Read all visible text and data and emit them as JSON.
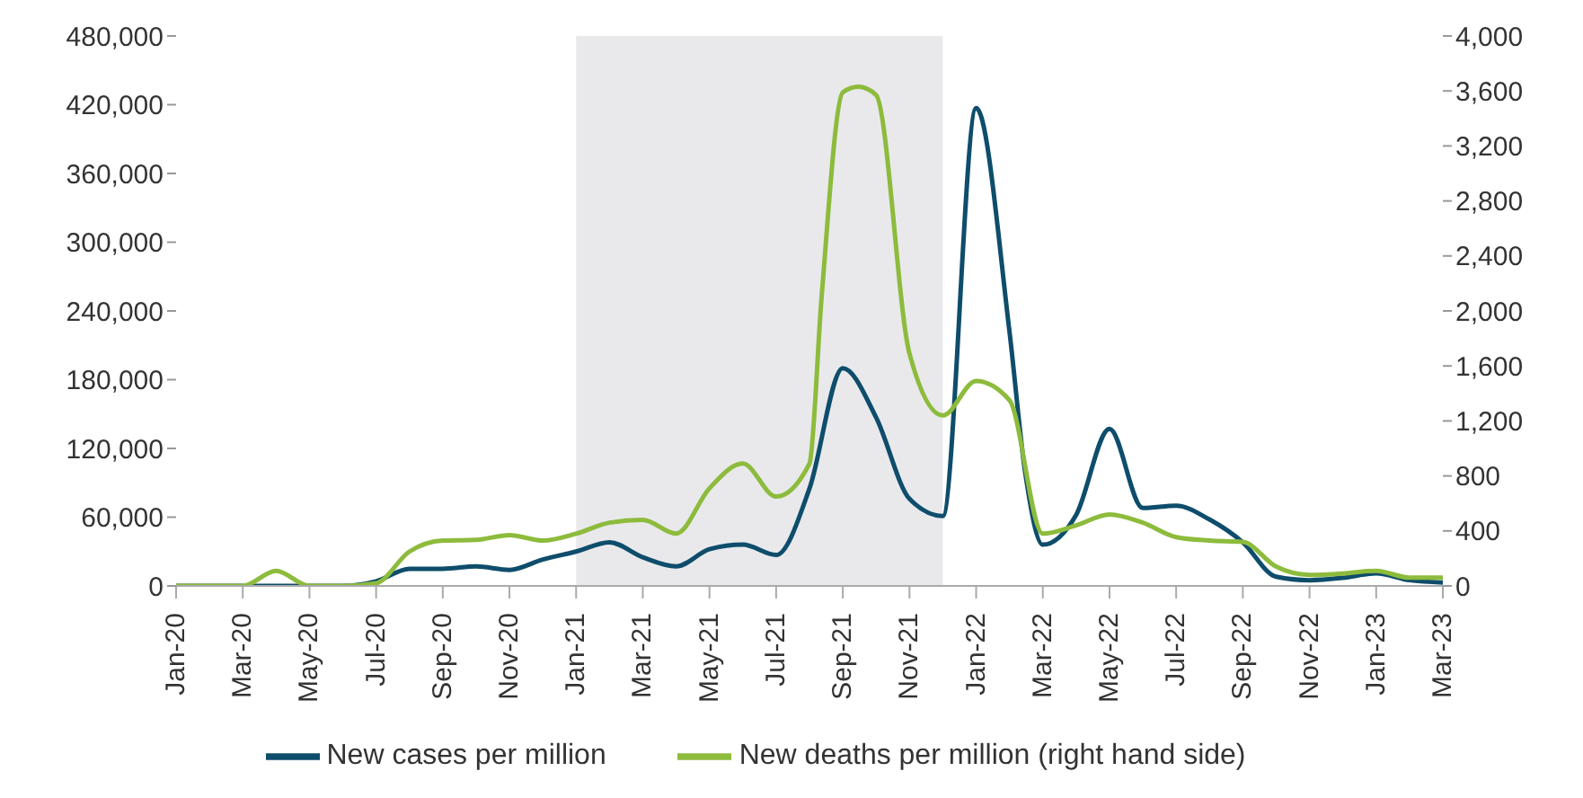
{
  "chart_data": {
    "type": "line",
    "xlim": [
      "2020-01",
      "2023-03"
    ],
    "xticks": [
      {
        "value": "2020-01",
        "label": "Jan-20"
      },
      {
        "value": "2020-03",
        "label": "Mar-20"
      },
      {
        "value": "2020-05",
        "label": "May-20"
      },
      {
        "value": "2020-07",
        "label": "Jul-20"
      },
      {
        "value": "2020-09",
        "label": "Sep-20"
      },
      {
        "value": "2020-11",
        "label": "Nov-20"
      },
      {
        "value": "2021-01",
        "label": "Jan-21"
      },
      {
        "value": "2021-03",
        "label": "Mar-21"
      },
      {
        "value": "2021-05",
        "label": "May-21"
      },
      {
        "value": "2021-07",
        "label": "Jul-21"
      },
      {
        "value": "2021-09",
        "label": "Sep-21"
      },
      {
        "value": "2021-11",
        "label": "Nov-21"
      },
      {
        "value": "2022-01",
        "label": "Jan-22"
      },
      {
        "value": "2022-03",
        "label": "Mar-22"
      },
      {
        "value": "2022-05",
        "label": "May-22"
      },
      {
        "value": "2022-07",
        "label": "Jul-22"
      },
      {
        "value": "2022-09",
        "label": "Sep-22"
      },
      {
        "value": "2022-11",
        "label": "Nov-22"
      },
      {
        "value": "2023-01",
        "label": "Jan-23"
      },
      {
        "value": "2023-03",
        "label": "Mar-23"
      }
    ],
    "ylim": [
      0,
      480000
    ],
    "yticks": [
      {
        "value": 0,
        "label": "0"
      },
      {
        "value": 60000,
        "label": "60,000"
      },
      {
        "value": 120000,
        "label": "120,000"
      },
      {
        "value": 180000,
        "label": "180,000"
      },
      {
        "value": 240000,
        "label": "240,000"
      },
      {
        "value": 300000,
        "label": "300,000"
      },
      {
        "value": 360000,
        "label": "360,000"
      },
      {
        "value": 420000,
        "label": "420,000"
      },
      {
        "value": 480000,
        "label": "480,000"
      }
    ],
    "y2lim": [
      0,
      4000
    ],
    "y2ticks": [
      {
        "value": 0,
        "label": "0"
      },
      {
        "value": 400,
        "label": "400"
      },
      {
        "value": 800,
        "label": "800"
      },
      {
        "value": 1200,
        "label": "1,200"
      },
      {
        "value": 1600,
        "label": "1,600"
      },
      {
        "value": 2000,
        "label": "2,000"
      },
      {
        "value": 2400,
        "label": "2,400"
      },
      {
        "value": 2800,
        "label": "2,800"
      },
      {
        "value": 3200,
        "label": "3,200"
      },
      {
        "value": 3600,
        "label": "3,600"
      },
      {
        "value": 4000,
        "label": "4,000"
      }
    ],
    "bands": [
      {
        "axis": "x",
        "from": "2021-01",
        "to": "2021-12",
        "color": "#e9e9ec"
      }
    ],
    "legend": "bottom",
    "marker": "none",
    "line_style": "solid",
    "series": [
      {
        "name": "New cases per million",
        "color": "#0e4d6b",
        "x": [
          "2020-01",
          "2020-02",
          "2020-03",
          "2020-04",
          "2020-05",
          "2020-06",
          "2020-07",
          "2020-08",
          "2020-09",
          "2020-10",
          "2020-11",
          "2020-12",
          "2021-01",
          "2021-02",
          "2021-03",
          "2021-04",
          "2021-05",
          "2021-06",
          "2021-07",
          "2021-08",
          "2021-09",
          "2021-10",
          "2021-11",
          "2021-12",
          "2022-01",
          "2022-02",
          "2022-02-15",
          "2022-03",
          "2022-04",
          "2022-05",
          "2022-06",
          "2022-07",
          "2022-08",
          "2022-09",
          "2022-10",
          "2022-11",
          "2022-12",
          "2023-01",
          "2023-02",
          "2023-03"
        ],
        "values": [
          0,
          0,
          0,
          0,
          0,
          0,
          4000,
          15000,
          15000,
          17000,
          14000,
          23000,
          30000,
          38000,
          25000,
          17000,
          32000,
          36000,
          27000,
          85000,
          190000,
          147000,
          76000,
          61000,
          417000,
          222000,
          100000,
          36000,
          62000,
          137000,
          68000,
          70000,
          58000,
          38000,
          8000,
          5000,
          7000,
          11000,
          5000,
          3000
        ]
      },
      {
        "name": "New deaths per million (right hand side)",
        "color": "#8dbb3c",
        "axis": "y2",
        "x": [
          "2020-01",
          "2020-02",
          "2020-03",
          "2020-04",
          "2020-05",
          "2020-06",
          "2020-07",
          "2020-08",
          "2020-09",
          "2020-10",
          "2020-11",
          "2020-12",
          "2021-01",
          "2021-02",
          "2021-03",
          "2021-04",
          "2021-05",
          "2021-06",
          "2021-07",
          "2021-08",
          "2021-08-12",
          "2021-09",
          "2021-09-15",
          "2021-10",
          "2021-11",
          "2021-12",
          "2022-01",
          "2022-02",
          "2022-03",
          "2022-04",
          "2022-05",
          "2022-06",
          "2022-07",
          "2022-08",
          "2022-09",
          "2022-10",
          "2022-11",
          "2022-12",
          "2023-01",
          "2023-02",
          "2023-03"
        ],
        "values": [
          0,
          0,
          0,
          110,
          0,
          0,
          20,
          250,
          330,
          335,
          370,
          330,
          380,
          460,
          480,
          380,
          710,
          890,
          650,
          890,
          2110,
          3590,
          3630,
          3570,
          1690,
          1240,
          1490,
          1350,
          380,
          440,
          520,
          460,
          355,
          330,
          320,
          140,
          80,
          90,
          110,
          60,
          60
        ]
      }
    ]
  }
}
